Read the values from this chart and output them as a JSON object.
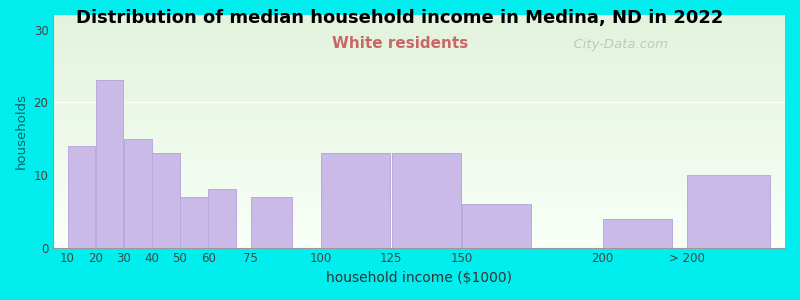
{
  "title": "Distribution of median household income in Medina, ND in 2022",
  "subtitle": "White residents",
  "xlabel": "household income ($1000)",
  "ylabel": "households",
  "bar_labels": [
    "10",
    "20",
    "30",
    "40",
    "50",
    "60",
    "75",
    "100",
    "125",
    "150",
    "200",
    "> 200"
  ],
  "bar_lefts": [
    10,
    20,
    30,
    40,
    50,
    60,
    75,
    100,
    125,
    150,
    200,
    230
  ],
  "bar_widths": [
    10,
    10,
    10,
    10,
    10,
    10,
    15,
    25,
    25,
    25,
    25,
    30
  ],
  "bar_values": [
    14,
    23,
    15,
    13,
    7,
    8,
    7,
    13,
    13,
    6,
    4,
    10
  ],
  "bar_color": "#C9BAE8",
  "bar_edge_color": "#B8A8DC",
  "background_color": "#00EEEE",
  "plot_bg_top_color": "#E2F2DC",
  "plot_bg_bottom_color": "#F8FFF8",
  "title_fontsize": 13,
  "subtitle_fontsize": 11,
  "subtitle_color": "#CC6666",
  "ylabel_color": "#006666",
  "xlabel_color": "#333333",
  "tick_label_color": "#444444",
  "yticks": [
    0,
    10,
    20,
    30
  ],
  "ylim": [
    0,
    32
  ],
  "xtick_positions": [
    10,
    20,
    30,
    40,
    50,
    60,
    75,
    100,
    125,
    150,
    200,
    230
  ],
  "xtick_labels": [
    "10",
    "20",
    "30",
    "40",
    "50",
    "60",
    "75",
    "100",
    "125",
    "150",
    "200",
    "> 200"
  ],
  "xlim": [
    5,
    265
  ],
  "watermark": "  City-Data.com",
  "hline_y": 20,
  "hline_color": "#FFFFFF"
}
